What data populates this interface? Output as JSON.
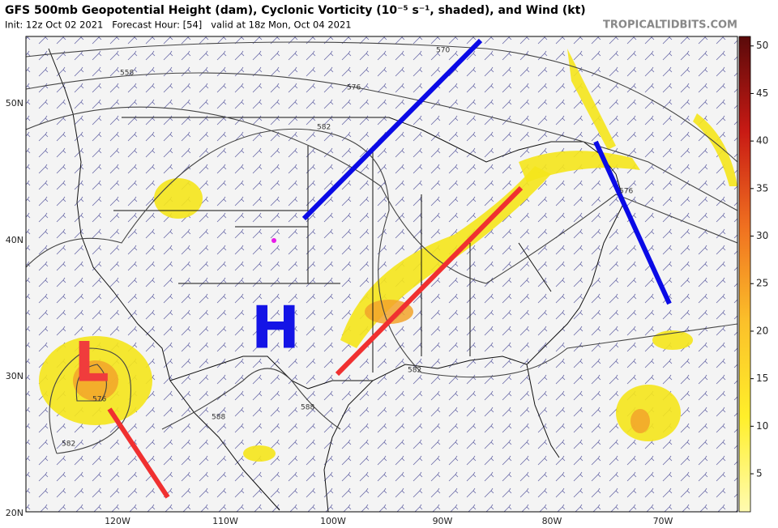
{
  "header": {
    "title": "GFS 500mb Geopotential Height (dam), Cyclonic Vorticity (10⁻⁵ s⁻¹, shaded), and Wind (kt)",
    "subtitle": "Init: 12z Oct 02 2021   Forecast Hour: [54]   valid at 18z Mon, Oct 04 2021",
    "watermark": "TROPICALTIDBITS.COM"
  },
  "map": {
    "lat_labels": [
      "50N",
      "40N",
      "30N",
      "20N"
    ],
    "lon_labels": [
      "120W",
      "110W",
      "100W",
      "90W",
      "80W",
      "70W"
    ],
    "contour_labels": [
      "558",
      "570",
      "576",
      "582",
      "576",
      "582",
      "588",
      "588",
      "576",
      "582"
    ],
    "annotations": [
      "H",
      "L"
    ]
  },
  "colorbar": {
    "range": [
      1,
      51
    ],
    "ticks": [
      5,
      10,
      15,
      20,
      25,
      30,
      35,
      40,
      45,
      50
    ]
  }
}
